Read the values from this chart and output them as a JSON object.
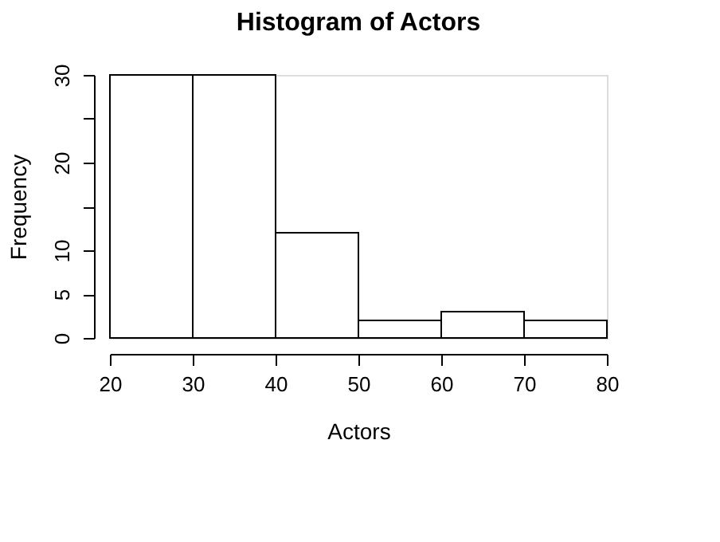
{
  "chart_data": {
    "type": "histogram",
    "title": "Histogram of Actors",
    "xlabel": "Actors",
    "ylabel": "Frequency",
    "bins": [
      20,
      30,
      40,
      50,
      60,
      70,
      80
    ],
    "values": [
      30,
      30,
      12,
      2,
      3,
      2
    ],
    "color": "#ffffff",
    "xlim": [
      20,
      80
    ],
    "xticks": [
      20,
      30,
      40,
      50,
      60,
      70,
      80
    ],
    "ylim": [
      0,
      30
    ],
    "yticks": [
      0,
      5,
      10,
      {
        "value": 15,
        "label": null
      },
      20,
      {
        "value": 25,
        "label": null
      },
      30
    ],
    "grid": false
  }
}
